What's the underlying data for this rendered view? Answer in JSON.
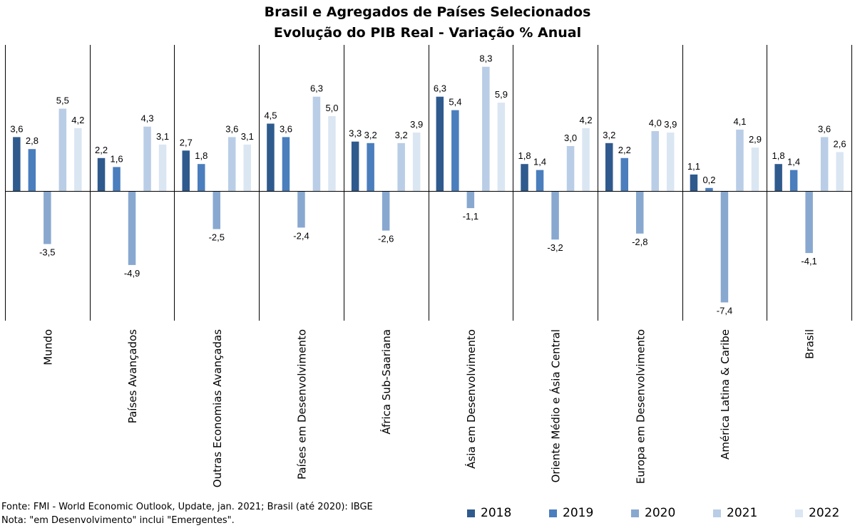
{
  "title_line1": "Brasil e Agregados de Países Selecionados",
  "title_line2": "Evolução do PIB Real - Variação % Anual",
  "source": "Fonte: FMI - World Economic Outlook, Update, jan. 2021; Brasil (até 2020): IBGE",
  "note": "Nota: \"em Desenvolvimento\" inclui \"Emergentes\".",
  "colors": {
    "2018": "#2f5a8e",
    "2019": "#4a7ebd",
    "2020": "#88a8d0",
    "2021": "#b9cde6",
    "2022": "#dbe6f3"
  },
  "chart_data": {
    "type": "bar",
    "categories": [
      "Mundo",
      "Países Avançados",
      "Outras Economias Avançadas",
      "Países em Desenvolvimento",
      "África Sub-Saariana",
      "Ásia em Desenvolvimento",
      "Oriente Médio e Ásia Central",
      "Europa em Desenvolvimento",
      "América Latina & Caribe",
      "Brasil"
    ],
    "series": [
      {
        "name": "2018",
        "values": [
          3.6,
          2.2,
          2.7,
          4.5,
          3.3,
          6.3,
          1.8,
          3.2,
          1.1,
          1.8
        ]
      },
      {
        "name": "2019",
        "values": [
          2.8,
          1.6,
          1.8,
          3.6,
          3.2,
          5.4,
          1.4,
          2.2,
          0.2,
          1.4
        ]
      },
      {
        "name": "2020",
        "values": [
          -3.5,
          -4.9,
          -2.5,
          -2.4,
          -2.6,
          -1.1,
          -3.2,
          -2.8,
          -7.4,
          -4.1
        ]
      },
      {
        "name": "2021",
        "values": [
          5.5,
          4.3,
          3.6,
          6.3,
          3.2,
          8.3,
          3.0,
          4.0,
          4.1,
          3.6
        ]
      },
      {
        "name": "2022",
        "values": [
          4.2,
          3.1,
          3.1,
          5.0,
          3.9,
          5.9,
          4.2,
          3.9,
          2.9,
          2.6
        ]
      }
    ],
    "ylim": [
      -8.5,
      9.5
    ],
    "legend_position": "bottom-right",
    "grid": false
  }
}
